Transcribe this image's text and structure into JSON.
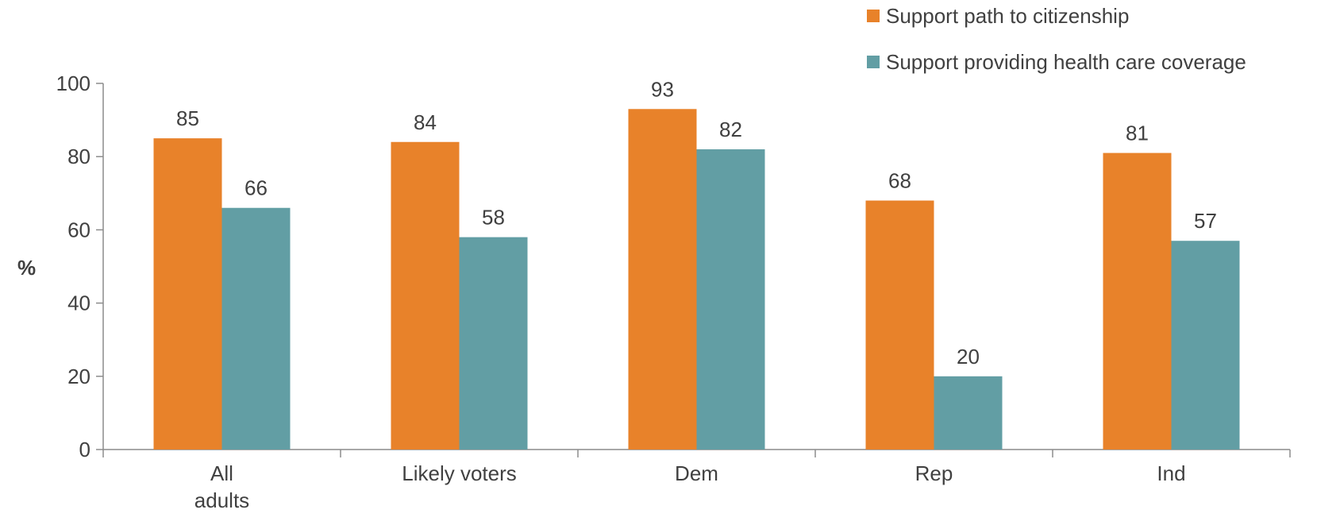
{
  "chart_data": {
    "type": "bar",
    "categories": [
      [
        "All",
        "adults"
      ],
      [
        "Likely voters"
      ],
      [
        "Dem"
      ],
      [
        "Rep"
      ],
      [
        "Ind"
      ]
    ],
    "series": [
      {
        "name": "Support path to citizenship",
        "color": "#E8822A",
        "values": [
          85,
          84,
          93,
          68,
          81
        ]
      },
      {
        "name": "Support providing health care coverage",
        "color": "#629EA4",
        "values": [
          66,
          58,
          82,
          20,
          57
        ]
      }
    ],
    "title": "",
    "xlabel": "",
    "ylabel": "%",
    "ylim": [
      0,
      100
    ],
    "yticks": [
      0,
      20,
      40,
      60,
      80,
      100
    ],
    "grid": false,
    "legend_position": "top-right",
    "axis_color": "#8C8C8C",
    "text_color": "#404040"
  }
}
